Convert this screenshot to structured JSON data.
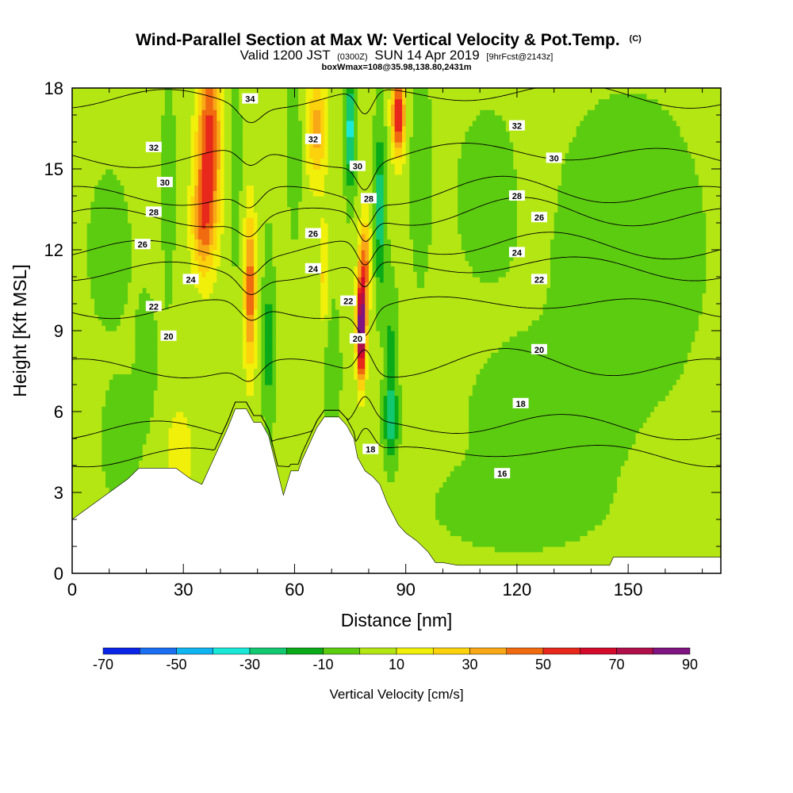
{
  "title": {
    "main": "Wind-Parallel Section at Max W: Vertical Velocity & Pot.Temp.",
    "copyright": "(C)",
    "valid_prefix": "Valid 1200 JST",
    "valid_utc": "(0300Z)",
    "valid_date": "SUN 14 Apr 2019",
    "forecast": "[9hrFcst@2143z]",
    "box": "boxWmax=108@35.98,138.80,2431m"
  },
  "chart_data": {
    "type": "heatmap",
    "xlabel": "Distance [nm]",
    "ylabel": "Height [Kft MSL]",
    "xlim": [
      0,
      175
    ],
    "ylim": [
      0,
      18
    ],
    "x_ticks": [
      "0",
      "30",
      "60",
      "90",
      "120",
      "150"
    ],
    "y_ticks": [
      "0",
      "3",
      "6",
      "9",
      "12",
      "15",
      "18"
    ],
    "colorbar": {
      "label": "Vertical Velocity [cm/s]",
      "tick_labels": [
        "-70",
        "-50",
        "-30",
        "-10",
        "10",
        "30",
        "50",
        "70",
        "90"
      ],
      "bounds": [
        -70,
        -60,
        -50,
        -40,
        -30,
        -20,
        -10,
        0,
        10,
        20,
        30,
        40,
        50,
        60,
        70,
        80,
        90
      ],
      "colors": [
        "#0a24e8",
        "#1a6ef0",
        "#10b4f0",
        "#1ae8d8",
        "#12c870",
        "#0aaa18",
        "#5ccc10",
        "#b4e614",
        "#f0f00a",
        "#fcd20c",
        "#f8a816",
        "#f06a10",
        "#e8281a",
        "#d20a2c",
        "#b0104a",
        "#801480"
      ]
    },
    "background_w": 3,
    "w_features": [
      {
        "x": 29,
        "y": 4.5,
        "sx": 4.0,
        "sy": 1.8,
        "w": 14
      },
      {
        "x": 37,
        "y": 16.0,
        "sx": 3.2,
        "sy": 3.5,
        "w": 52
      },
      {
        "x": 35,
        "y": 13.0,
        "sx": 3.0,
        "sy": 2.0,
        "w": 30
      },
      {
        "x": 48,
        "y": 10.5,
        "sx": 1.6,
        "sy": 3.0,
        "w": 44
      },
      {
        "x": 44,
        "y": 15.0,
        "sx": 1.8,
        "sy": 4.0,
        "w": -8
      },
      {
        "x": 26,
        "y": 14.5,
        "sx": 1.5,
        "sy": 4.0,
        "w": -12
      },
      {
        "x": 53,
        "y": 8.5,
        "sx": 1.4,
        "sy": 3.5,
        "w": -18
      },
      {
        "x": 66,
        "y": 16.5,
        "sx": 2.8,
        "sy": 2.0,
        "w": 32
      },
      {
        "x": 68,
        "y": 11.0,
        "sx": 1.4,
        "sy": 2.0,
        "w": 20
      },
      {
        "x": 60,
        "y": 16.0,
        "sx": 1.6,
        "sy": 3.0,
        "w": -14
      },
      {
        "x": 70,
        "y": 7.5,
        "sx": 2.2,
        "sy": 2.5,
        "w": -12
      },
      {
        "x": 78,
        "y": 9.0,
        "sx": 1.2,
        "sy": 1.8,
        "w": 95
      },
      {
        "x": 79,
        "y": 11.5,
        "sx": 1.6,
        "sy": 1.8,
        "w": 38
      },
      {
        "x": 75,
        "y": 16.5,
        "sx": 1.4,
        "sy": 2.2,
        "w": -38
      },
      {
        "x": 83,
        "y": 13.5,
        "sx": 1.6,
        "sy": 3.0,
        "w": -30
      },
      {
        "x": 86,
        "y": 5.8,
        "sx": 1.8,
        "sy": 1.5,
        "w": -32
      },
      {
        "x": 86,
        "y": 9.0,
        "sx": 1.6,
        "sy": 2.0,
        "w": -14
      },
      {
        "x": 88,
        "y": 17.0,
        "sx": 1.8,
        "sy": 1.5,
        "w": 58
      },
      {
        "x": 94,
        "y": 15.0,
        "sx": 2.8,
        "sy": 4.0,
        "w": -10
      },
      {
        "x": 10,
        "y": 12.0,
        "sx": 5.0,
        "sy": 2.5,
        "w": -12
      },
      {
        "x": 13,
        "y": 5.0,
        "sx": 4.5,
        "sy": 2.0,
        "w": -12
      },
      {
        "x": 20,
        "y": 8.0,
        "sx": 3.0,
        "sy": 2.5,
        "w": -8
      },
      {
        "x": 150,
        "y": 12.0,
        "sx": 18.0,
        "sy": 5.0,
        "w": -12
      },
      {
        "x": 130,
        "y": 6.0,
        "sx": 20.0,
        "sy": 2.5,
        "w": -11
      },
      {
        "x": 120,
        "y": 2.5,
        "sx": 20.0,
        "sy": 1.5,
        "w": -10
      },
      {
        "x": 112,
        "y": 14.0,
        "sx": 8.0,
        "sy": 3.0,
        "w": -9
      },
      {
        "x": 158,
        "y": 3.0,
        "sx": 7.0,
        "sy": 2.5,
        "w": 6
      },
      {
        "x": 125,
        "y": 15.5,
        "sx": 4.0,
        "sy": 2.5,
        "w": 6
      },
      {
        "x": 150,
        "y": 10.5,
        "sx": 4.0,
        "sy": 1.5,
        "w": 6
      }
    ],
    "terrain": [
      [
        0,
        2.0
      ],
      [
        3,
        2.3
      ],
      [
        6,
        2.6
      ],
      [
        9,
        2.9
      ],
      [
        12,
        3.2
      ],
      [
        15,
        3.5
      ],
      [
        18,
        3.9
      ],
      [
        21,
        3.9
      ],
      [
        24,
        3.9
      ],
      [
        28,
        3.9
      ],
      [
        32,
        3.5
      ],
      [
        35,
        3.3
      ],
      [
        36,
        3.6
      ],
      [
        38,
        4.2
      ],
      [
        40,
        4.8
      ],
      [
        42,
        5.4
      ],
      [
        44,
        6.1
      ],
      [
        47,
        6.1
      ],
      [
        49,
        5.6
      ],
      [
        51,
        5.6
      ],
      [
        53,
        5.1
      ],
      [
        55,
        4.0
      ],
      [
        57,
        2.9
      ],
      [
        59,
        3.8
      ],
      [
        61,
        3.8
      ],
      [
        62,
        4.2
      ],
      [
        64,
        4.8
      ],
      [
        66,
        5.4
      ],
      [
        68,
        5.8
      ],
      [
        70,
        5.8
      ],
      [
        72,
        5.8
      ],
      [
        74,
        5.5
      ],
      [
        76,
        5.0
      ],
      [
        77,
        4.3
      ],
      [
        79,
        3.8
      ],
      [
        81,
        3.6
      ],
      [
        83,
        3.3
      ],
      [
        85,
        2.6
      ],
      [
        88,
        1.8
      ],
      [
        90,
        1.5
      ],
      [
        93,
        1.2
      ],
      [
        96,
        0.8
      ],
      [
        98,
        0.4
      ],
      [
        100,
        0.4
      ],
      [
        104,
        0.3
      ],
      [
        145,
        0.3
      ],
      [
        146,
        0.6
      ],
      [
        155,
        0.6
      ],
      [
        165,
        0.6
      ],
      [
        175,
        0.6
      ]
    ],
    "theta_contours": [
      {
        "label": "16",
        "base": 4.3,
        "label_at": [
          [
            116,
            3.7
          ]
        ]
      },
      {
        "label": "18",
        "base": 5.3,
        "label_at": [
          [
            80.5,
            4.6
          ],
          [
            121,
            6.3
          ]
        ]
      },
      {
        "label": "20",
        "base": 7.6,
        "label_at": [
          [
            26,
            8.8
          ],
          [
            77,
            8.7
          ],
          [
            126,
            8.3
          ]
        ]
      },
      {
        "label": "22",
        "base": 9.8,
        "label_at": [
          [
            22,
            9.9
          ],
          [
            74.5,
            10.1
          ],
          [
            126,
            10.9
          ]
        ]
      },
      {
        "label": "24",
        "base": 11.2,
        "label_at": [
          [
            32,
            10.9
          ],
          [
            65,
            11.3
          ],
          [
            120,
            11.9
          ]
        ]
      },
      {
        "label": "26",
        "base": 12.0,
        "label_at": [
          [
            19,
            12.2
          ],
          [
            65,
            12.6
          ],
          [
            126,
            13.2
          ]
        ]
      },
      {
        "label": "28",
        "base": 13.2,
        "label_at": [
          [
            22,
            13.4
          ],
          [
            80,
            13.9
          ],
          [
            120,
            14.0
          ]
        ]
      },
      {
        "label": "30",
        "base": 14.0,
        "label_at": [
          [
            25,
            14.5
          ],
          [
            77,
            15.1
          ],
          [
            130,
            15.4
          ]
        ]
      },
      {
        "label": "32",
        "base": 15.4,
        "label_at": [
          [
            22,
            15.8
          ],
          [
            65,
            16.1
          ],
          [
            120,
            16.6
          ]
        ]
      },
      {
        "label": "34",
        "base": 17.6,
        "label_at": [
          [
            48,
            17.6
          ]
        ]
      }
    ]
  }
}
